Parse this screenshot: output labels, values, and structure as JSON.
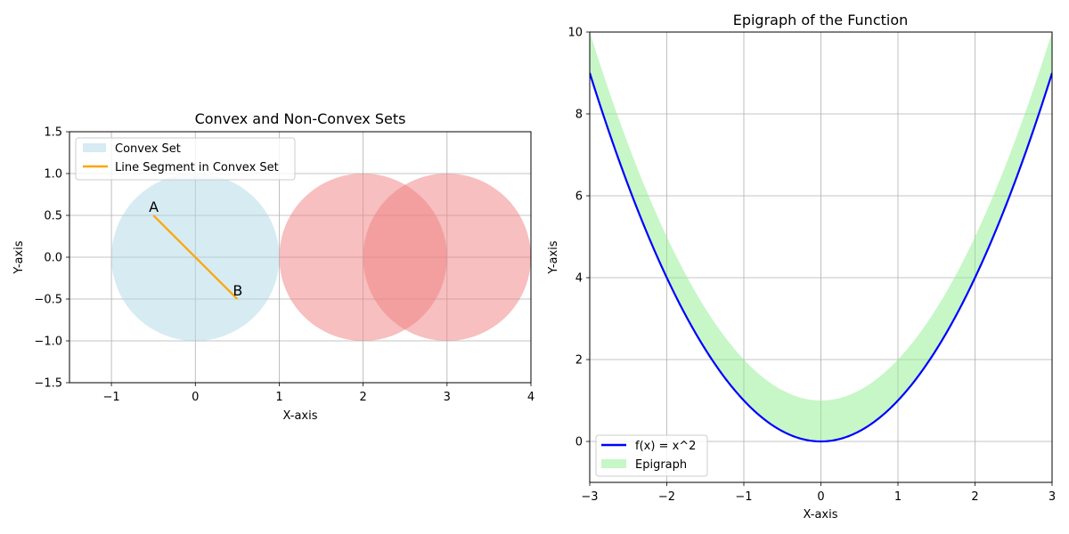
{
  "chart_data": [
    {
      "type": "scatter",
      "title": "Convex and Non-Convex Sets",
      "xlabel": "X-axis",
      "ylabel": "Y-axis",
      "xlim": [
        -1.5,
        4
      ],
      "ylim": [
        -1.5,
        1.5
      ],
      "xticks": [
        -1,
        0,
        1,
        2,
        3,
        4
      ],
      "yticks": [
        -1.5,
        -1.0,
        -0.5,
        0.0,
        0.5,
        1.0,
        1.5
      ],
      "xtick_labels": [
        "−1",
        "0",
        "1",
        "2",
        "3",
        "4"
      ],
      "ytick_labels": [
        "−1.5",
        "−1.0",
        "−0.5",
        "0.0",
        "0.5",
        "1.0",
        "1.5"
      ],
      "grid": true,
      "legend_position": "top-left",
      "shapes": [
        {
          "kind": "circle",
          "name": "Convex Set",
          "center": [
            0,
            0
          ],
          "radius": 1,
          "color": "#add8e6",
          "opacity": 0.5
        },
        {
          "kind": "circle",
          "center": [
            2,
            0
          ],
          "radius": 1,
          "color": "#f08080",
          "opacity": 0.5
        },
        {
          "kind": "circle",
          "center": [
            3,
            0
          ],
          "radius": 1,
          "color": "#f08080",
          "opacity": 0.5
        }
      ],
      "series": [
        {
          "name": "Line Segment in Convex Set",
          "type": "line",
          "color": "#ffa500",
          "x": [
            -0.5,
            0.5
          ],
          "y": [
            0.5,
            -0.5
          ]
        }
      ],
      "annotations": [
        {
          "text": "A",
          "x": -0.5,
          "y": 0.5
        },
        {
          "text": "B",
          "x": 0.5,
          "y": -0.5
        }
      ],
      "legend": [
        {
          "label": "Convex Set",
          "kind": "patch",
          "color": "#add8e6"
        },
        {
          "label": "Line Segment in Convex Set",
          "kind": "line",
          "color": "#ffa500"
        }
      ]
    },
    {
      "type": "area",
      "title": "Epigraph of the Function",
      "xlabel": "X-axis",
      "ylabel": "Y-axis",
      "xlim": [
        -3,
        3
      ],
      "ylim": [
        -1,
        10
      ],
      "xticks": [
        -3,
        -2,
        -1,
        0,
        1,
        2,
        3
      ],
      "yticks": [
        0,
        2,
        4,
        6,
        8,
        10
      ],
      "xtick_labels": [
        "−3",
        "−2",
        "−1",
        "0",
        "1",
        "2",
        "3"
      ],
      "ytick_labels": [
        "0",
        "2",
        "4",
        "6",
        "8",
        "10"
      ],
      "grid": true,
      "legend_position": "bottom-left",
      "series": [
        {
          "name": "f(x) = x^2",
          "type": "line",
          "color": "#0000ff",
          "function": "x^2",
          "x_range": [
            -3,
            3
          ]
        },
        {
          "name": "Epigraph",
          "type": "area",
          "color": "#90ee90",
          "opacity": 0.5,
          "lower": "x^2",
          "upper": "x^2 + 1",
          "x_range": [
            -3,
            3
          ]
        }
      ],
      "legend": [
        {
          "label": "f(x) = x^2",
          "kind": "line",
          "color": "#0000ff"
        },
        {
          "label": "Epigraph",
          "kind": "patch",
          "color": "#90ee90"
        }
      ]
    }
  ]
}
